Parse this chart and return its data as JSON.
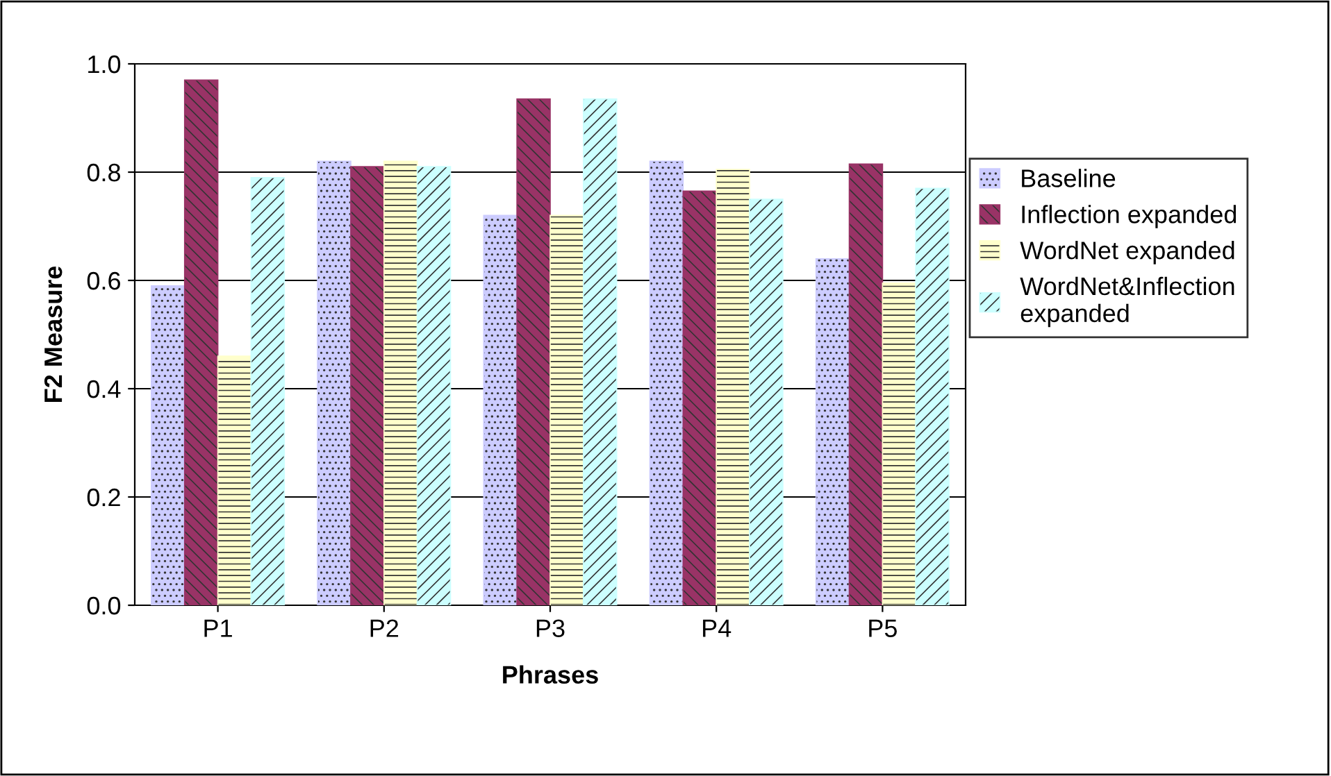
{
  "chart_data": {
    "type": "bar",
    "xlabel": "Phrases",
    "ylabel": "F2 Measure",
    "categories": [
      "P1",
      "P2",
      "P3",
      "P4",
      "P5"
    ],
    "series": [
      {
        "name": "Baseline",
        "color": "#ccccff",
        "values": [
          0.59,
          0.82,
          0.72,
          0.82,
          0.64
        ]
      },
      {
        "name": "Inflection expanded",
        "color": "#993366",
        "values": [
          0.97,
          0.81,
          0.935,
          0.765,
          0.815
        ]
      },
      {
        "name": "WordNet expanded",
        "color": "#ffffcc",
        "values": [
          0.46,
          0.82,
          0.72,
          0.805,
          0.595
        ]
      },
      {
        "name": "WordNet&Inflection\nexpanded",
        "color": "#ccffff",
        "values": [
          0.79,
          0.81,
          0.935,
          0.75,
          0.77
        ]
      }
    ],
    "ylim": [
      0,
      1.0
    ],
    "yticks": [
      {
        "value": 0,
        "label": "0.0"
      },
      {
        "value": 0.2,
        "label": "0.2"
      },
      {
        "value": 0.4,
        "label": "0.4"
      },
      {
        "value": 0.6,
        "label": "0.6"
      },
      {
        "value": 0.8,
        "label": "0.8"
      },
      {
        "value": 1.0,
        "label": "1.0"
      }
    ],
    "grid": "y",
    "legend": "right"
  }
}
